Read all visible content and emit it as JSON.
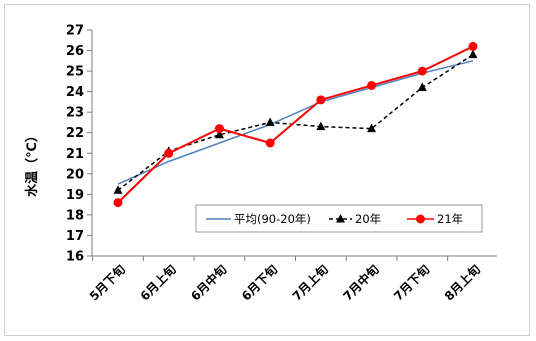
{
  "chart_data": {
    "type": "line",
    "title": "",
    "xlabel": "",
    "ylabel": "水温（℃）",
    "ylim": [
      16,
      27
    ],
    "yticks": [
      16,
      17,
      18,
      19,
      20,
      21,
      22,
      23,
      24,
      25,
      26,
      27
    ],
    "grid": false,
    "legend_position": "bottom-right",
    "categories": [
      "5月下旬",
      "6月上旬",
      "6月中旬",
      "6月下旬",
      "7月上旬",
      "7月中旬",
      "7月下旬",
      "8月上旬"
    ],
    "series": [
      {
        "name": "平均(90-20年)",
        "values": [
          19.5,
          20.6,
          21.5,
          22.4,
          23.5,
          24.2,
          24.9,
          25.5
        ],
        "color": "#4f81bd",
        "line_style": "solid",
        "marker": "none"
      },
      {
        "name": "20年",
        "values": [
          19.2,
          21.1,
          21.9,
          22.5,
          22.3,
          22.2,
          24.2,
          25.8
        ],
        "color": "#000000",
        "line_style": "dashed",
        "marker": "triangle"
      },
      {
        "name": "21年",
        "values": [
          18.6,
          21.0,
          22.2,
          21.5,
          23.6,
          24.3,
          25.0,
          26.2
        ],
        "color": "#ff0000",
        "line_style": "solid",
        "marker": "circle"
      }
    ]
  }
}
